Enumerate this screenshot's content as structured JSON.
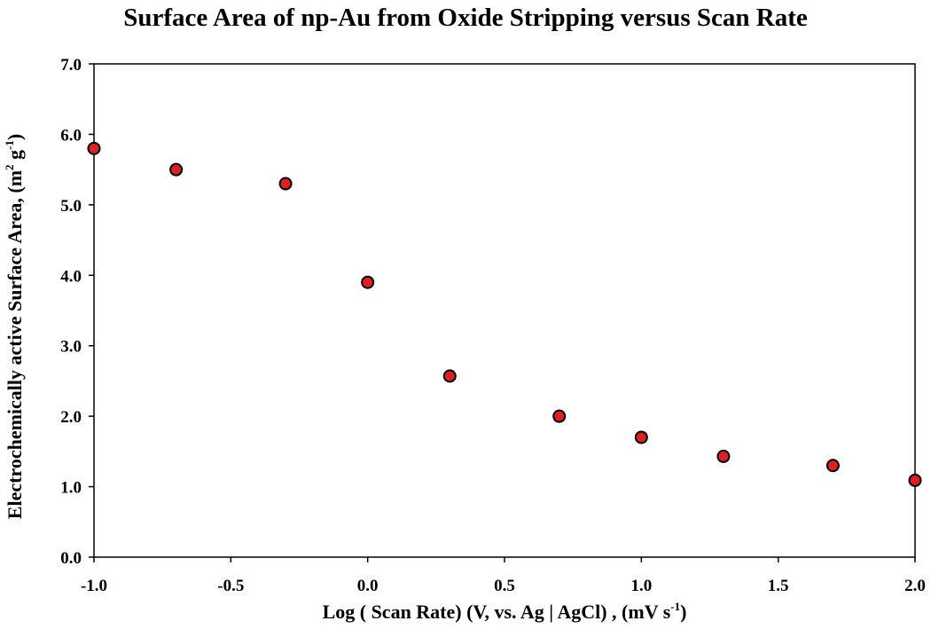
{
  "chart_data": {
    "type": "scatter",
    "title": "Surface Area of np-Au from Oxide Stripping versus Scan Rate",
    "xlabel": {
      "before": "Log ( Scan Rate) (V, vs. Ag | AgCl) , (mV s",
      "sup": "-1",
      "after": ")"
    },
    "ylabel": {
      "before": "Electrochemically active Surface Area, (m",
      "sup1": "2",
      "mid": " g",
      "sup2": "-1",
      "after": ")"
    },
    "xlim": [
      -1.0,
      2.0
    ],
    "ylim": [
      0.0,
      7.0
    ],
    "xticks": [
      "-1.0",
      "-0.5",
      "0.0",
      "0.5",
      "1.0",
      "1.5",
      "2.0"
    ],
    "yticks": [
      "0.0",
      "1.0",
      "2.0",
      "3.0",
      "4.0",
      "5.0",
      "6.0",
      "7.0"
    ],
    "grid": false,
    "legend": "none",
    "marker_color": "#e02020",
    "marker_edge": "#000000",
    "series": [
      {
        "x": [
          -1.0,
          -0.7,
          -0.3,
          0.0,
          0.3,
          0.7,
          1.0,
          1.3,
          1.7,
          2.0
        ],
        "y": [
          5.8,
          5.5,
          5.3,
          3.9,
          2.57,
          2.0,
          1.7,
          1.43,
          1.3,
          1.09
        ]
      }
    ]
  }
}
